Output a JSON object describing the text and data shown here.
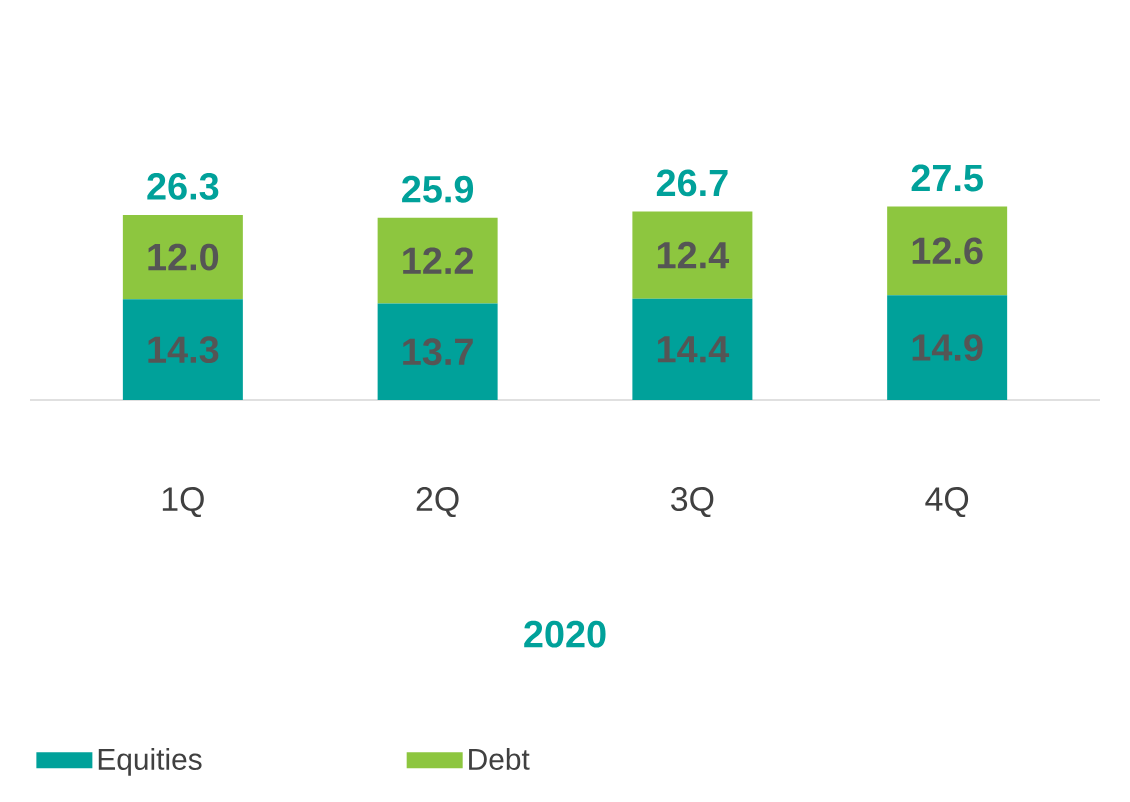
{
  "chart_data": {
    "type": "bar",
    "stacked": true,
    "xlabel": "2020",
    "categories": [
      "1Q",
      "2Q",
      "3Q",
      "4Q"
    ],
    "series": [
      {
        "name": "Equities",
        "color": "#00a19a",
        "values": [
          14.3,
          13.7,
          14.4,
          14.9
        ],
        "value_labels": [
          "14.3",
          "13.7",
          "14.4",
          "14.9"
        ]
      },
      {
        "name": "Debt",
        "color": "#8dc63f",
        "values": [
          12.0,
          12.2,
          12.4,
          12.6
        ],
        "value_labels": [
          "12.0",
          "12.2",
          "12.4",
          "12.6"
        ]
      }
    ],
    "totals": [
      "26.3",
      "25.9",
      "26.7",
      "27.5"
    ],
    "legend": "bottom"
  }
}
